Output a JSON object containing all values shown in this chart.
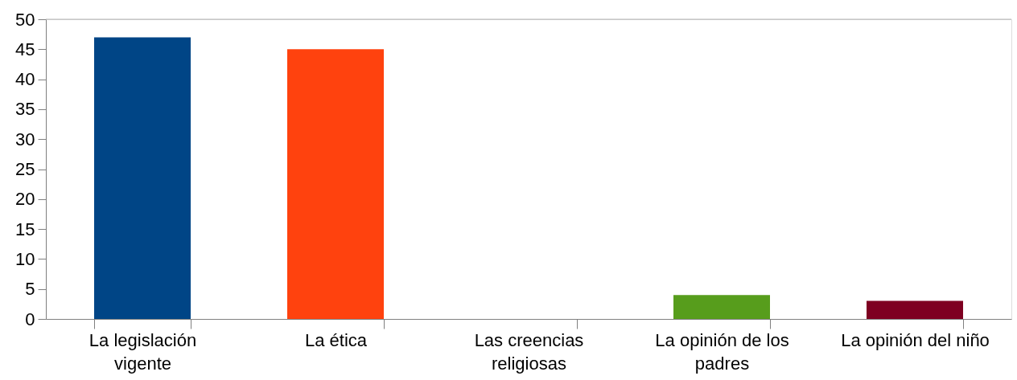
{
  "chart_data": {
    "type": "bar",
    "categories": [
      "La legislación vigente",
      "La ética",
      "Las creencias religiosas",
      "La opinión de los padres",
      "La opinión del niño"
    ],
    "values": [
      47,
      45,
      0,
      4,
      3
    ],
    "colors": [
      "#004586",
      "#ff420e",
      "#ffd320",
      "#579d1c",
      "#7e0021"
    ],
    "ylim": [
      0,
      50
    ],
    "yticks": [
      0,
      5,
      10,
      15,
      20,
      25,
      30,
      35,
      40,
      45,
      50
    ],
    "grid": false,
    "ref_lines": [
      {
        "axis": "y",
        "value": 50,
        "color": "#b3b3b3"
      }
    ]
  }
}
